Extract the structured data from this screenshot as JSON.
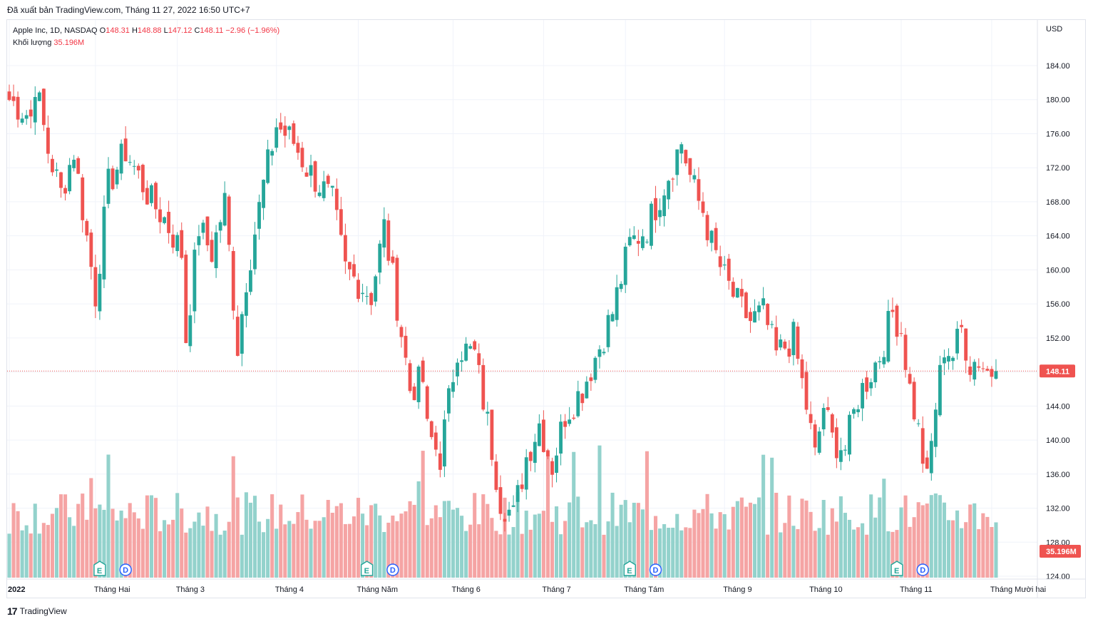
{
  "header": {
    "published": "Đã xuất bản TradingView.com, Tháng 11 27, 2022 16:50 UTC+7"
  },
  "legend": {
    "symbol": "Apple Inc, 1D, NASDAQ",
    "o_label": "O",
    "o_value": "148.31",
    "h_label": "H",
    "h_value": "148.88",
    "l_label": "L",
    "l_value": "147.12",
    "c_label": "C",
    "c_value": "148.11",
    "change": "−2.96 (−1.96%)",
    "volume_label": "Khối lượng",
    "volume_value": "35.196M"
  },
  "axis": {
    "currency": "USD",
    "price_badge": "148.11",
    "volume_badge": "35.196M"
  },
  "footer": {
    "brand": "TradingView",
    "logo_glyph": "17"
  },
  "colors": {
    "up": "#26a69a",
    "down": "#ef5350",
    "grid": "#f0f3fa",
    "up_vol": "#93d2cc",
    "down_vol": "#f5a4a4"
  },
  "chart_data": {
    "type": "candlestick",
    "ylim": [
      124,
      187
    ],
    "last_price": 148.11,
    "yticks": [
      184,
      180,
      176,
      172,
      168,
      164,
      160,
      156,
      152,
      148,
      144,
      140,
      136,
      132,
      128,
      124
    ],
    "ytick_labels": [
      "184.00",
      "180.00",
      "176.00",
      "172.00",
      "168.00",
      "164.00",
      "160.00",
      "156.00",
      "152.00",
      "",
      "144.00",
      "140.00",
      "136.00",
      "132.00",
      "128.00",
      "124.00"
    ],
    "xticks": [
      {
        "label": "2022",
        "index": 0
      },
      {
        "label": "Tháng Hai",
        "index": 20
      },
      {
        "label": "Tháng 3",
        "index": 39
      },
      {
        "label": "Tháng 4",
        "index": 62
      },
      {
        "label": "Tháng Năm",
        "index": 81
      },
      {
        "label": "Tháng 6",
        "index": 103
      },
      {
        "label": "Tháng 7",
        "index": 124
      },
      {
        "label": "Tháng Tám",
        "index": 143
      },
      {
        "label": "Tháng 9",
        "index": 166
      },
      {
        "label": "Tháng 10",
        "index": 186
      },
      {
        "label": "Tháng 11",
        "index": 207
      },
      {
        "label": "Tháng Mười hai",
        "index": 228
      }
    ],
    "events": [
      {
        "type": "E",
        "index": 21
      },
      {
        "type": "D",
        "index": 27
      },
      {
        "type": "E",
        "index": 83
      },
      {
        "type": "D",
        "index": 89
      },
      {
        "type": "E",
        "index": 144
      },
      {
        "type": "D",
        "index": 150
      },
      {
        "type": "E",
        "index": 206
      },
      {
        "type": "D",
        "index": 212
      }
    ],
    "keypoints": [
      [
        0,
        180
      ],
      [
        5,
        178
      ],
      [
        6,
        182
      ],
      [
        9,
        174
      ],
      [
        12,
        169
      ],
      [
        15,
        174
      ],
      [
        20,
        157
      ],
      [
        23,
        170
      ],
      [
        27,
        174
      ],
      [
        29,
        172
      ],
      [
        33,
        168
      ],
      [
        36,
        166
      ],
      [
        40,
        162
      ],
      [
        41,
        152
      ],
      [
        44,
        165
      ],
      [
        47,
        162
      ],
      [
        50,
        168
      ],
      [
        53,
        151
      ],
      [
        55,
        159
      ],
      [
        59,
        170
      ],
      [
        62,
        177
      ],
      [
        66,
        175
      ],
      [
        69,
        172
      ],
      [
        72,
        170
      ],
      [
        75,
        168
      ],
      [
        78,
        160
      ],
      [
        84,
        157
      ],
      [
        87,
        165
      ],
      [
        90,
        156
      ],
      [
        93,
        146
      ],
      [
        96,
        147
      ],
      [
        97,
        141
      ],
      [
        100,
        138
      ],
      [
        104,
        151
      ],
      [
        108,
        150
      ],
      [
        111,
        142
      ],
      [
        114,
        133
      ],
      [
        117,
        131
      ],
      [
        120,
        138
      ],
      [
        123,
        142
      ],
      [
        126,
        137
      ],
      [
        129,
        143
      ],
      [
        133,
        146
      ],
      [
        137,
        151
      ],
      [
        140,
        155
      ],
      [
        144,
        163
      ],
      [
        148,
        165
      ],
      [
        152,
        170
      ],
      [
        156,
        175
      ],
      [
        158,
        171
      ],
      [
        160,
        168
      ],
      [
        161,
        167
      ],
      [
        163,
        163
      ],
      [
        166,
        159
      ],
      [
        169,
        156
      ],
      [
        172,
        154
      ],
      [
        175,
        155
      ],
      [
        178,
        150
      ],
      [
        182,
        152
      ],
      [
        185,
        144
      ],
      [
        187,
        138
      ],
      [
        189,
        144
      ],
      [
        191,
        140
      ],
      [
        194,
        139
      ],
      [
        197,
        145
      ],
      [
        200,
        148
      ],
      [
        202,
        150
      ],
      [
        205,
        155
      ],
      [
        207,
        153
      ],
      [
        209,
        146
      ],
      [
        211,
        141
      ],
      [
        213,
        135
      ],
      [
        215,
        144
      ],
      [
        217,
        151
      ],
      [
        219,
        150
      ],
      [
        221,
        153
      ],
      [
        223,
        149
      ],
      [
        225,
        149.5
      ],
      [
        227,
        148.11
      ]
    ],
    "volume_ylim": [
      0,
      200
    ]
  }
}
